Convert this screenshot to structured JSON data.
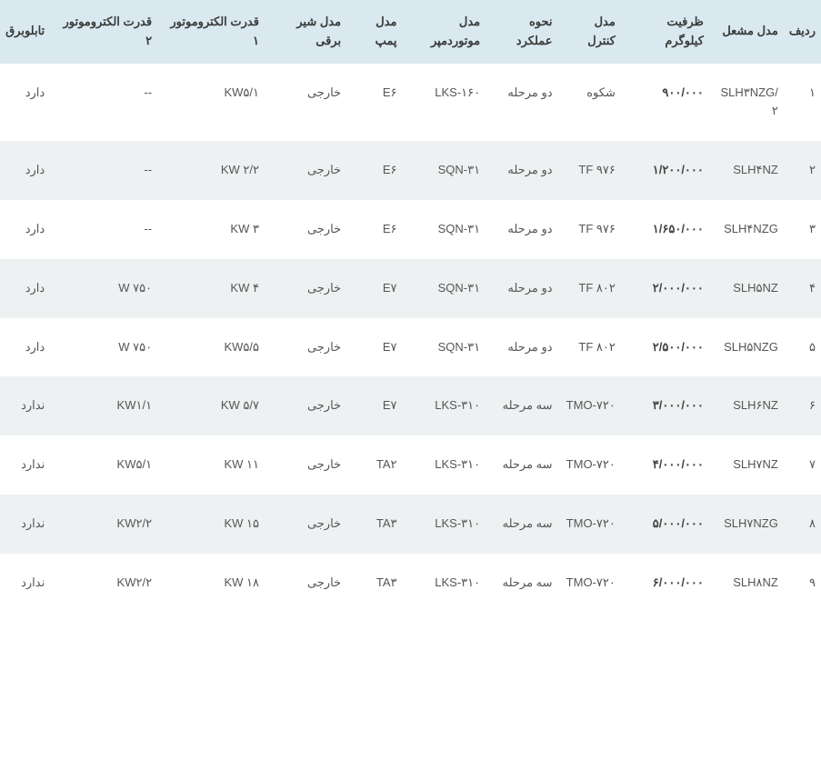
{
  "table": {
    "columns": [
      "ردیف",
      "مدل مشعل",
      "ظرفیت کیلوگرم",
      "مدل کنترل",
      "نحوه عملکرد",
      "مدل موتوردمپر",
      "مدل پمپ",
      "مدل شیر برقی",
      "قدرت الکتروموتور ۱",
      "قدرت الکتروموتور ۲",
      "تابلوبرق"
    ],
    "rows": [
      [
        "۱",
        "SLH۳NZG/۲",
        "۹۰۰/۰۰۰",
        "شکوه",
        "دو مرحله",
        "LKS-۱۶۰",
        "E۶",
        "خارجی",
        "KW۵/۱",
        "--",
        "دارد"
      ],
      [
        "۲",
        "SLH۴NZ",
        "۱/۲۰۰/۰۰۰",
        "TF ۹۷۶",
        "دو مرحله",
        "SQN-۳۱",
        "E۶",
        "خارجی",
        "KW ۲/۲",
        "--",
        "دارد"
      ],
      [
        "۳",
        "SLH۴NZG",
        "۱/۶۵۰/۰۰۰",
        "TF ۹۷۶",
        "دو مرحله",
        "SQN-۳۱",
        "E۶",
        "خارجی",
        "KW ۳",
        "--",
        "دارد"
      ],
      [
        "۴",
        "SLH۵NZ",
        "۲/۰۰۰/۰۰۰",
        "TF ۸۰۲",
        "دو مرحله",
        "SQN-۳۱",
        "E۷",
        "خارجی",
        "KW ۴",
        "W ۷۵۰",
        "دارد"
      ],
      [
        "۵",
        "SLH۵NZG",
        "۲/۵۰۰/۰۰۰",
        "TF ۸۰۲",
        "دو مرحله",
        "SQN-۳۱",
        "E۷",
        "خارجی",
        "KW۵/۵",
        "W ۷۵۰",
        "دارد"
      ],
      [
        "۶",
        "SLH۶NZ",
        "۳/۰۰۰/۰۰۰",
        "TMO-۷۲۰",
        "سه مرحله",
        "LKS-۳۱۰",
        "E۷",
        "خارجی",
        "KW ۵/۷",
        "KW۱/۱",
        "ندارد"
      ],
      [
        "۷",
        "SLH۷NZ",
        "۴/۰۰۰/۰۰۰",
        "TMO-۷۲۰",
        "سه مرحله",
        "LKS-۳۱۰",
        "TA۲",
        "خارجی",
        "KW ۱۱",
        "KW۵/۱",
        "ندارد"
      ],
      [
        "۸",
        "SLH۷NZG",
        "۵/۰۰۰/۰۰۰",
        "TMO-۷۲۰",
        "سه مرحله",
        "LKS-۳۱۰",
        "TA۳",
        "خارجی",
        "KW ۱۵",
        "KW۲/۲",
        "ندارد"
      ],
      [
        "۹",
        "SLH۸NZ",
        "۶/۰۰۰/۰۰۰",
        "TMO-۷۲۰",
        "سه مرحله",
        "LKS-۳۱۰",
        "TA۳",
        "خارجی",
        "KW ۱۸",
        "KW۲/۲",
        "ندارد"
      ]
    ],
    "bold_cols": [
      2
    ],
    "header_bg": "#d9e9ef",
    "odd_row_bg": "#ffffff",
    "even_row_bg": "#eef1f2",
    "text_color": "#555555",
    "header_text_color": "#3a3a3a",
    "font_size": 13
  }
}
